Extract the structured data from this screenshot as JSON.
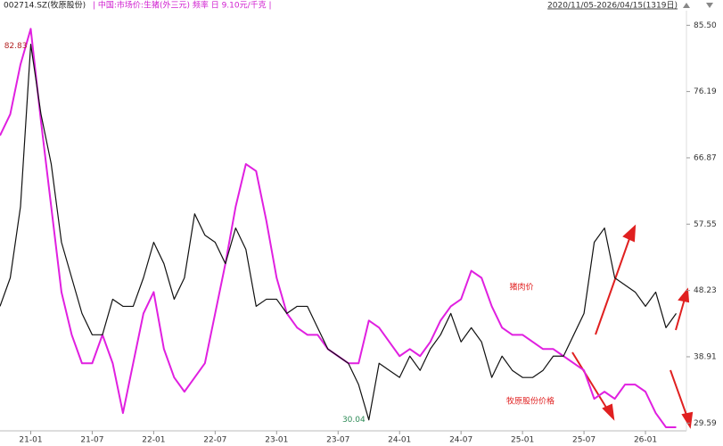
{
  "chart_data": {
    "type": "line",
    "header": {
      "code": "002714.SZ(牧原股份)",
      "indicator": "| 中国:市场价:生猪(外三元) 频率 日 9.10元/千克 |",
      "range": "2020/11/05-2026/04/15(1319日)"
    },
    "x": [
      -3,
      -2,
      -1,
      0,
      1,
      2,
      3,
      4,
      5,
      6,
      7,
      8,
      9,
      10,
      11,
      12,
      13,
      14,
      15,
      16,
      17,
      18,
      19,
      20,
      21,
      22,
      23,
      24,
      25,
      26,
      27,
      28,
      29,
      30,
      31,
      32,
      33,
      34,
      35,
      36,
      37,
      38,
      39,
      40,
      41,
      42,
      43,
      44,
      45,
      46,
      47,
      48,
      49,
      50,
      51,
      52,
      53,
      54,
      55,
      56,
      57,
      58,
      59,
      60,
      61,
      62,
      63
    ],
    "xlim": [
      -3,
      64
    ],
    "xticks": [
      {
        "value": 0,
        "label": "21-01"
      },
      {
        "value": 6,
        "label": "21-07"
      },
      {
        "value": 12,
        "label": "22-01"
      },
      {
        "value": 18,
        "label": "22-07"
      },
      {
        "value": 24,
        "label": "23-01"
      },
      {
        "value": 30,
        "label": "23-07"
      },
      {
        "value": 36,
        "label": "24-01"
      },
      {
        "value": 42,
        "label": "24-07"
      },
      {
        "value": 48,
        "label": "25-01"
      },
      {
        "value": 54,
        "label": "25-07"
      },
      {
        "value": 60,
        "label": "26-01"
      }
    ],
    "ylim": [
      28.5,
      87.8
    ],
    "yticks": [
      {
        "value": 29.59,
        "label": "29.59"
      },
      {
        "value": 38.91,
        "label": "38.91"
      },
      {
        "value": 48.23,
        "label": "48.23"
      },
      {
        "value": 57.55,
        "label": "57.55"
      },
      {
        "value": 66.87,
        "label": "66.87"
      },
      {
        "value": 76.19,
        "label": "76.19"
      },
      {
        "value": 85.5,
        "label": "85.50"
      }
    ],
    "series": [
      {
        "name": "猪肉价",
        "color": "#e020e0",
        "values": [
          70,
          73,
          80,
          85,
          72,
          60,
          48,
          42,
          38,
          38,
          42,
          38,
          31,
          38,
          45,
          48,
          40,
          36,
          34,
          36,
          38,
          45,
          52,
          60,
          66,
          65,
          58,
          50,
          45,
          43,
          42,
          42,
          40,
          39,
          38,
          38,
          44,
          43,
          41,
          39,
          40,
          39,
          41,
          44,
          46,
          47,
          51,
          50,
          46,
          43,
          42,
          42,
          41,
          40,
          40,
          39,
          38,
          37,
          33,
          34,
          33,
          35,
          35,
          34,
          31,
          29,
          29
        ]
      },
      {
        "name": "牧原股份价格",
        "color": "#111111",
        "values": [
          46,
          50,
          60,
          82.83,
          73,
          66,
          55,
          50,
          45,
          42,
          42,
          47,
          46,
          46,
          50,
          55,
          52,
          47,
          50,
          59,
          56,
          55,
          52,
          57,
          54,
          46,
          47,
          47,
          45,
          46,
          46,
          43,
          40,
          39,
          38,
          35,
          30.04,
          38,
          37,
          36,
          39,
          37,
          40,
          42,
          45,
          41,
          43,
          41,
          36,
          39,
          37,
          36,
          36,
          37,
          39,
          39,
          42,
          45,
          55,
          57,
          50,
          49,
          48,
          46,
          48,
          43,
          45
        ]
      }
    ],
    "annotations": [
      {
        "text": "82.83",
        "x": 0,
        "y": 82.83,
        "color": "#b22222"
      },
      {
        "text": "30.04",
        "x": 33,
        "y": 30.04,
        "color": "#2e8b57"
      }
    ]
  }
}
